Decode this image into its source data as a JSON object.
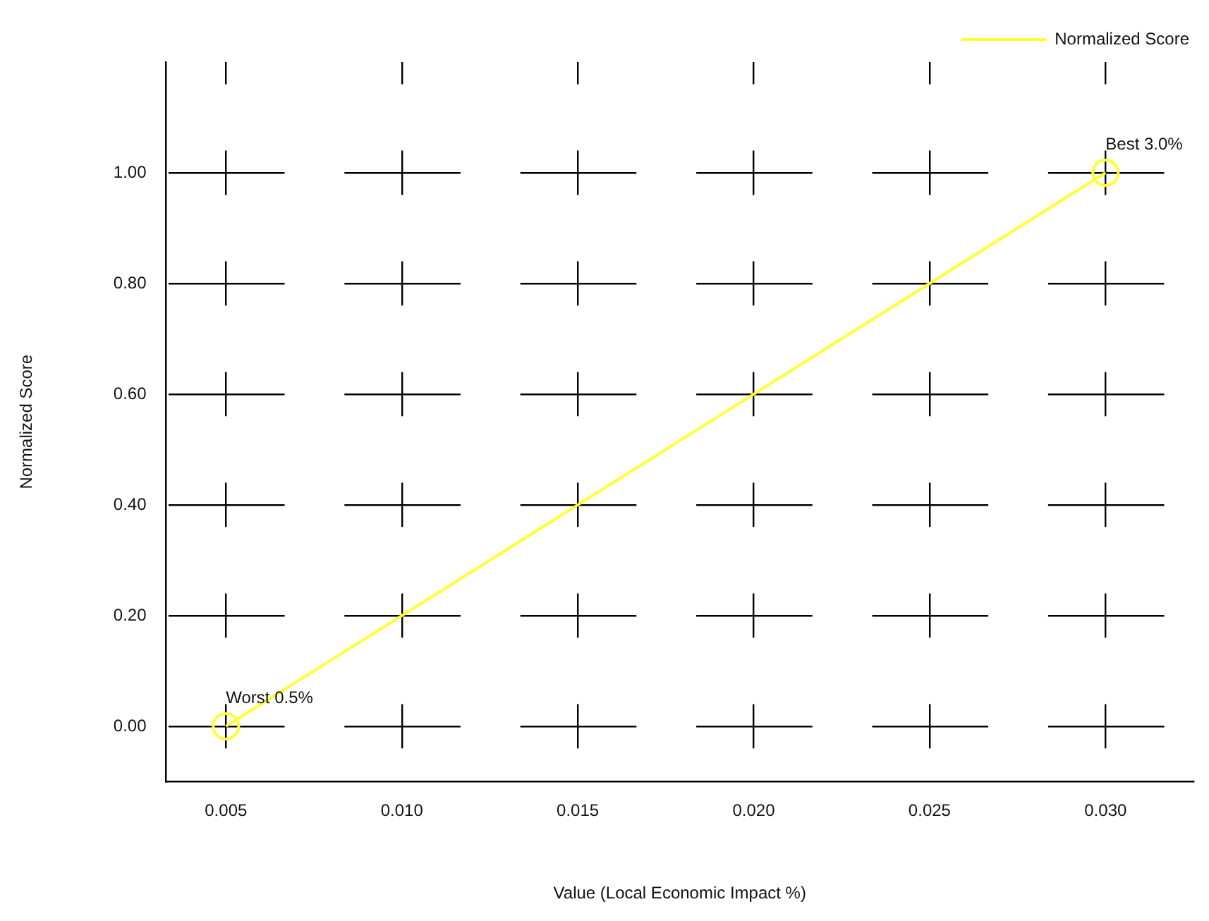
{
  "chart_data": {
    "type": "line",
    "xlabel": "Value (Local Economic Impact %)",
    "ylabel": "Normalized Score",
    "x": [
      0.005,
      0.03
    ],
    "series": [
      {
        "name": "Normalized Score",
        "color": "#ffff33",
        "values": [
          0,
          1.0
        ]
      }
    ],
    "xlim": [
      0.0033,
      0.0325
    ],
    "ylim": [
      -0.1,
      1.2
    ],
    "xticks": [
      {
        "value": 0.005,
        "label": "0.005"
      },
      {
        "value": 0.01,
        "label": "0.010"
      },
      {
        "value": 0.015,
        "label": "0.015"
      },
      {
        "value": 0.02,
        "label": "0.020"
      },
      {
        "value": 0.025,
        "label": "0.025"
      },
      {
        "value": 0.03,
        "label": "0.030"
      }
    ],
    "yticks": [
      {
        "value": 0,
        "label": "0.00"
      },
      {
        "value": 0.2,
        "label": "0.20"
      },
      {
        "value": 0.4,
        "label": "0.40"
      },
      {
        "value": 0.6,
        "label": "0.60"
      },
      {
        "value": 0.8,
        "label": "0.80"
      },
      {
        "value": 1.0,
        "label": "1.00"
      }
    ],
    "annotations": [
      {
        "text": "Worst 0.5%",
        "x": 0.005,
        "y": 0
      },
      {
        "text": "Best 3.0%",
        "x": 0.03,
        "y": 1.0
      }
    ],
    "grid": true,
    "legend": "top right",
    "marker": "circle",
    "line_style": "solid"
  }
}
